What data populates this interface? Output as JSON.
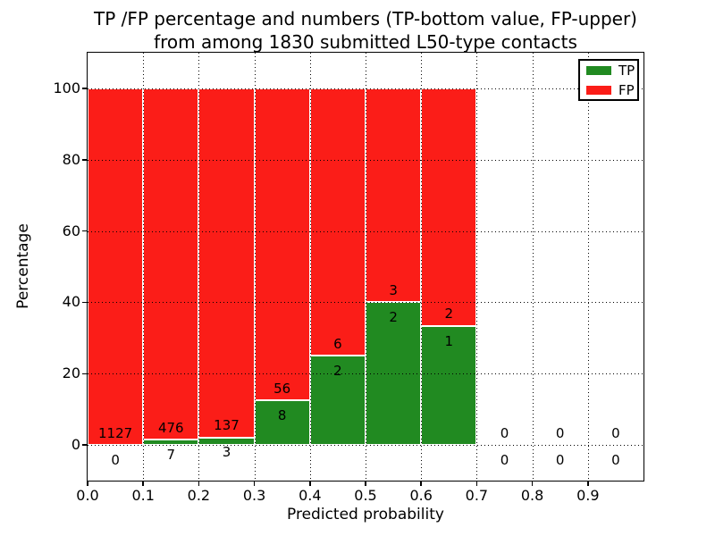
{
  "figure": {
    "title_line1": "TP /FP percentage and numbers (TP-bottom value, FP-upper)",
    "title_line2": "from among 1830 submitted L50-type contacts",
    "xlabel": "Predicted probability",
    "ylabel": "Percentage"
  },
  "legend": {
    "items": [
      {
        "label": "TP",
        "color": "#218a21"
      },
      {
        "label": "FP",
        "color": "#fb1d18"
      }
    ]
  },
  "chart_data": {
    "type": "bar",
    "stacked": true,
    "title": "TP /FP percentage and numbers (TP-bottom value, FP-upper) from among 1830 submitted L50-type contacts",
    "xlabel": "Predicted probability",
    "ylabel": "Percentage",
    "total_contacts": 1830,
    "bin_width": 0.1,
    "bin_starts": [
      0.0,
      0.1,
      0.2,
      0.3,
      0.4,
      0.5,
      0.6,
      0.7,
      0.8,
      0.9
    ],
    "series": [
      {
        "name": "TP",
        "color": "#218a21",
        "counts": [
          0,
          7,
          3,
          8,
          2,
          2,
          1,
          0,
          0,
          0
        ]
      },
      {
        "name": "FP",
        "color": "#fb1d18",
        "counts": [
          1127,
          476,
          137,
          56,
          6,
          3,
          2,
          0,
          0,
          0
        ]
      }
    ],
    "tp_percent": [
      0,
      1.45,
      2.14,
      12.5,
      25,
      40,
      33.33,
      0,
      0,
      0
    ],
    "fp_percent": [
      100,
      98.55,
      97.86,
      87.5,
      75,
      60,
      66.67,
      0,
      0,
      0
    ],
    "xticks": [
      "0.0",
      "0.1",
      "0.2",
      "0.3",
      "0.4",
      "0.5",
      "0.6",
      "0.7",
      "0.8",
      "0.9"
    ],
    "yticks": [
      0,
      20,
      40,
      60,
      80,
      100
    ],
    "xlim": [
      0.0,
      1.0
    ],
    "ylim": [
      -10,
      110
    ],
    "grid": true,
    "legend_position": "upper right",
    "bar_edge_color": "#ffffff"
  }
}
